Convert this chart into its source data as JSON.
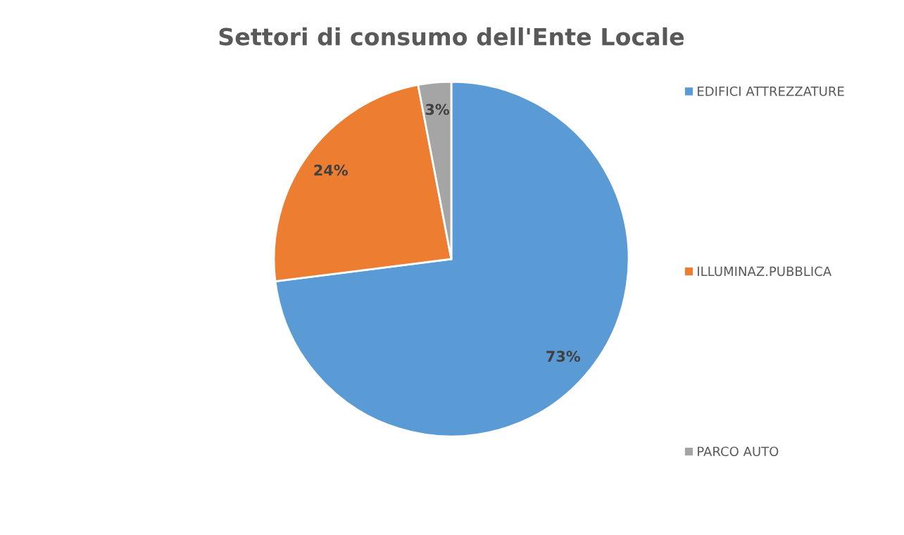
{
  "chart_data": {
    "type": "pie",
    "title": "Settori di consumo dell'Ente Locale",
    "categories": [
      "EDIFICI ATTREZZATURE",
      "ILLUMINAZ.PUBBLICA",
      "PARCO AUTO"
    ],
    "values": [
      73,
      24,
      3
    ],
    "colors": [
      "#5b9bd5",
      "#ed7d31",
      "#a5a5a5"
    ],
    "value_labels": [
      "73%",
      "24%",
      "3%"
    ],
    "legend": "right"
  }
}
